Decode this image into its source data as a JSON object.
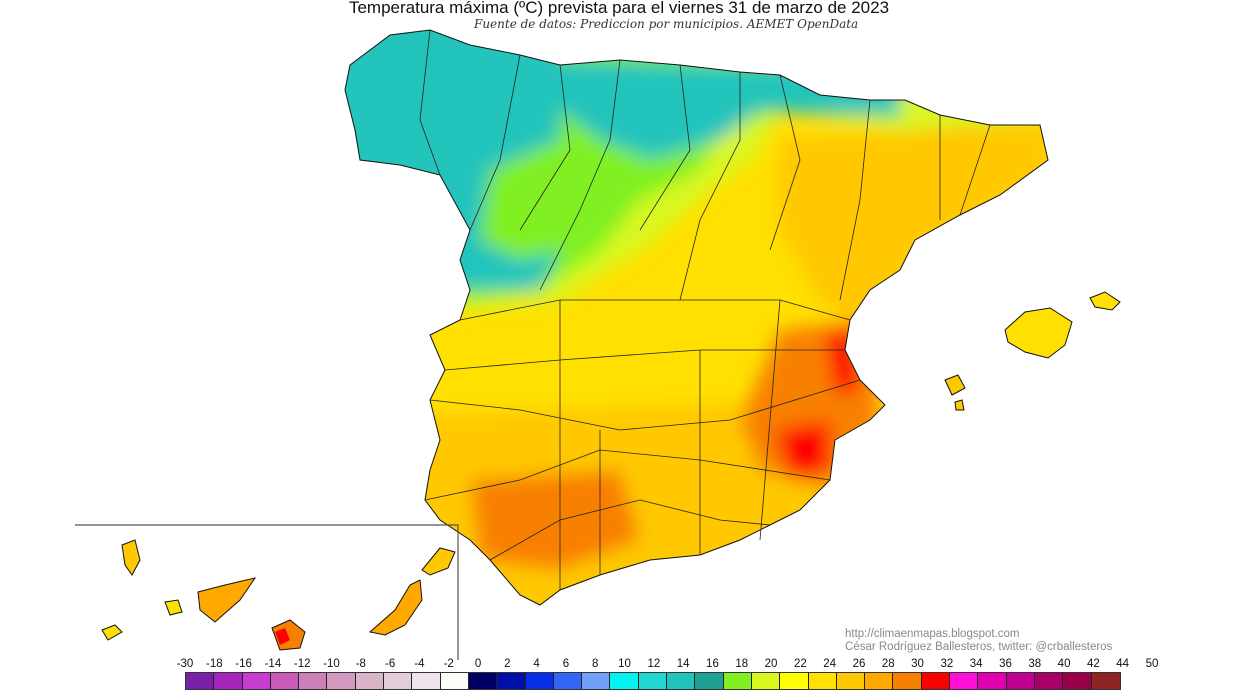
{
  "title": "Temperatura máxima (ºC) prevista para el viernes 31 de marzo de 2023",
  "subtitle": "Fuente de datos: Prediccion por municipios. AEMET OpenData",
  "credits": {
    "url": "http://climaenmapas.blogspot.com",
    "author": "César Rodríguez Ballesteros, twitter: @crballesteros"
  },
  "legend": {
    "unit": "ºC",
    "labels": [
      "-30",
      "-18",
      "-16",
      "-14",
      "-12",
      "-10",
      "-8",
      "-6",
      "-4",
      "-2",
      "0",
      "2",
      "4",
      "6",
      "8",
      "10",
      "12",
      "14",
      "16",
      "18",
      "20",
      "22",
      "24",
      "26",
      "28",
      "30",
      "32",
      "34",
      "36",
      "38",
      "40",
      "42",
      "44",
      "50"
    ],
    "colors": [
      "#7a1fa8",
      "#a424bc",
      "#c83cd0",
      "#c85ab8",
      "#cc80b8",
      "#d49ac0",
      "#dab4c8",
      "#e4ccd8",
      "#ece4ea",
      "#fcfcf6",
      "#000064",
      "#0010a8",
      "#0530e8",
      "#3366f4",
      "#70a0f8",
      "#00f4f0",
      "#20d8d0",
      "#20c4bc",
      "#20a090",
      "#80f020",
      "#d8f820",
      "#ffff00",
      "#ffe000",
      "#ffc800",
      "#ffa800",
      "#f88000",
      "#ff0000",
      "#ff10d8",
      "#e000b0",
      "#c00090",
      "#a80068",
      "#980048",
      "#902424"
    ]
  },
  "map_colors": {
    "cold_north": "#20c4bc",
    "green_plateau": "#80f020",
    "center": "#d8f820",
    "mid": "#ffe000",
    "south": "#ffa800",
    "hot": "#f88000",
    "hottest": "#ff0000"
  }
}
